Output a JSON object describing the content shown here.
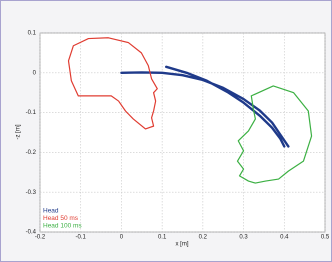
{
  "chart_data": {
    "type": "line",
    "xlabel": "x [m]",
    "ylabel": "-z [m]",
    "xlim": [
      -0.2,
      0.5
    ],
    "ylim": [
      -0.4,
      0.1
    ],
    "xticks": [
      -0.2,
      -0.1,
      0,
      0.1,
      0.2,
      0.3,
      0.4,
      0.5
    ],
    "yticks": [
      -0.4,
      -0.3,
      -0.2,
      -0.1,
      0,
      0.1
    ],
    "grid": true,
    "legend": "lower left",
    "series": [
      {
        "name": "Head",
        "color": "#1f3a8a",
        "x": [
          0,
          0.05,
          0.1,
          0.15,
          0.2,
          0.25,
          0.3,
          0.34,
          0.37,
          0.39,
          0.41,
          null,
          0.11,
          0.16,
          0.21,
          0.26,
          0.3,
          0.34,
          0.37,
          0.39,
          0.4
        ],
        "values": [
          0,
          0.001,
          0,
          -0.006,
          -0.018,
          -0.038,
          -0.066,
          -0.095,
          -0.125,
          -0.155,
          -0.185,
          null,
          0.015,
          0.0,
          -0.02,
          -0.048,
          -0.075,
          -0.108,
          -0.138,
          -0.165,
          -0.185
        ]
      },
      {
        "name": "Head 50 ms",
        "color": "#e03c31",
        "x": [
          -0.106,
          -0.123,
          -0.13,
          -0.118,
          -0.081,
          -0.032,
          0.017,
          0.049,
          0.066,
          0.074,
          0.088,
          0.079,
          0.084,
          0.079,
          0.074,
          0.079,
          0.059,
          0.029,
          0.01,
          -0.007,
          -0.025,
          -0.069,
          -0.106
        ],
        "values": [
          -0.058,
          -0.02,
          0.03,
          0.068,
          0.086,
          0.088,
          0.076,
          0.05,
          0.018,
          -0.015,
          -0.04,
          -0.05,
          -0.071,
          -0.096,
          -0.113,
          -0.134,
          -0.141,
          -0.116,
          -0.096,
          -0.071,
          -0.058,
          -0.058,
          -0.058
        ]
      },
      {
        "name": "Head 100 ms",
        "color": "#3cb043",
        "x": [
          0.319,
          0.373,
          0.423,
          0.459,
          0.467,
          0.447,
          0.41,
          0.386,
          0.354,
          0.329,
          0.312,
          0.29,
          0.3,
          0.285,
          0.3,
          0.287,
          0.312,
          0.329,
          0.324,
          0.319
        ],
        "values": [
          -0.058,
          -0.033,
          -0.05,
          -0.096,
          -0.159,
          -0.222,
          -0.247,
          -0.267,
          -0.272,
          -0.277,
          -0.272,
          -0.259,
          -0.242,
          -0.222,
          -0.196,
          -0.171,
          -0.146,
          -0.116,
          -0.091,
          -0.058
        ]
      }
    ]
  }
}
